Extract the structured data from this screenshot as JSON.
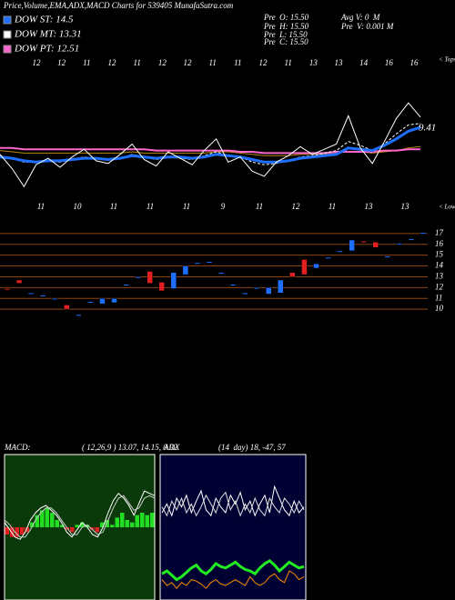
{
  "title": "Price,Volume,EMA,ADX,MACD Charts for 539405 MunafaSutra.com",
  "dow": [
    {
      "label": "DOW ST: 14.5",
      "color": "#1e6fff"
    },
    {
      "label": "DOW MT: 13.31",
      "color": "#ffffff"
    },
    {
      "label": "DOW PT: 12.51",
      "color": "#ff66cc"
    }
  ],
  "pre": [
    "Pre  O: 15.50",
    "Pre  H: 15.50",
    "Pre  L: 15.50",
    "Pre  C: 15.50"
  ],
  "vol": [
    "Avg V: 0  M",
    "Pre  V: 0.001 M"
  ],
  "chart_data": [
    {
      "type": "line",
      "ylim": [
        8,
        20
      ],
      "annotation": "9.41",
      "tops_label": "< Tops",
      "lows_label": "< Lows",
      "tops": [
        12,
        12,
        11,
        12,
        11,
        12,
        12,
        11,
        11,
        12,
        11,
        13,
        13,
        14,
        16,
        16
      ],
      "lows": [
        11,
        10,
        11,
        11,
        11,
        9,
        11,
        12,
        11,
        13,
        13
      ],
      "series": [
        {
          "color": "#b8860b",
          "width": 1,
          "values": [
            12.9,
            12.8,
            12.7,
            12.7,
            12.7,
            12.7,
            12.7,
            12.7,
            12.7,
            12.7,
            12.7,
            12.8,
            12.7,
            12.7,
            12.7,
            12.7,
            12.7,
            12.7,
            12.8,
            12.8,
            12.7,
            12.6,
            12.5,
            12.5,
            12.5,
            12.6,
            12.6,
            12.6,
            12.7,
            12.8,
            12.8,
            12.7,
            12.8,
            12.9,
            13.1,
            13.2
          ]
        },
        {
          "color": "#ff66cc",
          "width": 2,
          "values": [
            13.1,
            13.1,
            13.0,
            13.0,
            13.0,
            13.0,
            13.0,
            13.0,
            13.0,
            13.0,
            13.0,
            13.0,
            13.0,
            12.9,
            12.9,
            12.9,
            12.9,
            12.9,
            12.9,
            12.9,
            12.8,
            12.8,
            12.7,
            12.7,
            12.7,
            12.7,
            12.7,
            12.7,
            12.8,
            12.8,
            12.8,
            12.8,
            12.9,
            12.9,
            13.0,
            13.0
          ]
        },
        {
          "color": "#ffffff",
          "width": 1,
          "dash": true,
          "values": [
            12.5,
            12.3,
            12.0,
            12.0,
            12.1,
            12.0,
            12.2,
            12.4,
            12.3,
            12.2,
            12.3,
            12.6,
            12.4,
            12.2,
            12.4,
            12.3,
            12.2,
            12.5,
            12.8,
            12.5,
            12.4,
            12.0,
            11.8,
            11.9,
            12.1,
            12.4,
            12.5,
            12.7,
            12.9,
            13.6,
            13.3,
            12.9,
            13.4,
            14.2,
            14.9,
            15.0
          ]
        },
        {
          "color": "#1e6fff",
          "width": 3,
          "values": [
            12.4,
            12.3,
            12.1,
            12.0,
            12.1,
            12.1,
            12.2,
            12.3,
            12.3,
            12.2,
            12.3,
            12.5,
            12.4,
            12.3,
            12.4,
            12.4,
            12.3,
            12.4,
            12.6,
            12.5,
            12.4,
            12.2,
            12.0,
            12.0,
            12.1,
            12.3,
            12.4,
            12.5,
            12.6,
            13.1,
            13.0,
            12.9,
            13.3,
            13.8,
            14.4,
            14.7
          ]
        },
        {
          "color": "#ffffff",
          "width": 1,
          "values": [
            12.6,
            11.5,
            10.1,
            11.8,
            12.3,
            11.6,
            12.4,
            13.0,
            12.1,
            11.9,
            12.6,
            13.4,
            12.2,
            11.7,
            12.8,
            12.3,
            11.8,
            12.9,
            13.8,
            12.0,
            12.4,
            11.3,
            10.9,
            12.0,
            12.5,
            13.2,
            12.6,
            13.0,
            13.4,
            15.6,
            13.1,
            11.9,
            13.6,
            15.4,
            16.6,
            15.5
          ]
        }
      ]
    },
    {
      "type": "candlestick",
      "ylim": [
        9,
        18
      ],
      "yticks": [
        10,
        11,
        12,
        13,
        14,
        15,
        16,
        17
      ],
      "grid": true,
      "up_color": "#1e6fff",
      "down_color": "#e02020",
      "grid_color": "#8b4513",
      "open": [
        11.9,
        12.7,
        11.5,
        11.3,
        11.0,
        10.4,
        9.5,
        10.7,
        10.5,
        10.6,
        12.3,
        13.0,
        13.5,
        12.5,
        11.9,
        13.2,
        14.3,
        14.4,
        13.4,
        12.3,
        11.5,
        12.0,
        11.4,
        11.5,
        13.4,
        14.6,
        13.8,
        14.8,
        15.4,
        15.4,
        16.3,
        16.2,
        14.9,
        16.1,
        16.5,
        17.1
      ],
      "close": [
        11.8,
        12.4,
        11.5,
        11.3,
        11.0,
        10.0,
        9.5,
        10.7,
        11.0,
        11.0,
        12.3,
        13.0,
        12.4,
        11.7,
        13.4,
        14.0,
        14.3,
        14.4,
        13.4,
        12.3,
        11.5,
        12.0,
        12.0,
        12.7,
        13.0,
        13.2,
        14.2,
        14.8,
        15.4,
        16.4,
        16.2,
        15.7,
        14.9,
        16.1,
        16.5,
        17.1
      ]
    },
    {
      "type": "macd",
      "title": "MACD:",
      "subtitle": "( 12,26,9 ) 13.07, 14.15, 0.92",
      "ylim": [
        -3,
        3
      ],
      "background": "#0a3a0a",
      "up_color": "#22dd22",
      "down_color": "#e02020",
      "histogram": [
        -0.3,
        -0.4,
        -0.4,
        -0.3,
        -0.2,
        0.2,
        0.5,
        0.7,
        0.8,
        0.6,
        0.3,
        0.1,
        -0.1,
        -0.2,
        0.1,
        0.2,
        0.1,
        -0.1,
        -0.2,
        0.2,
        0.3,
        0.1,
        0.4,
        0.6,
        0.3,
        0.2,
        0.5,
        0.6,
        0.5,
        0.6
      ],
      "series": [
        {
          "color": "#ffffff",
          "values": [
            0.2,
            -0.1,
            -0.4,
            -0.5,
            -0.2,
            0.3,
            0.6,
            0.8,
            0.9,
            0.7,
            0.5,
            0.2,
            -0.2,
            -0.4,
            -0.1,
            0.2,
            0.0,
            -0.3,
            -0.4,
            0.0,
            0.6,
            1.1,
            1.4,
            1.2,
            0.9,
            0.5,
            1.0,
            1.5,
            1.4,
            1.3
          ]
        },
        {
          "color": "#cccccc",
          "values": [
            0.3,
            0.1,
            -0.2,
            -0.4,
            -0.4,
            -0.1,
            0.3,
            0.6,
            0.8,
            0.8,
            0.6,
            0.3,
            0.0,
            -0.3,
            -0.3,
            0.0,
            0.1,
            -0.1,
            -0.3,
            -0.2,
            0.3,
            0.8,
            1.2,
            1.3,
            1.0,
            0.7,
            0.8,
            1.2,
            1.3,
            1.2
          ]
        }
      ]
    },
    {
      "type": "adx",
      "title": "ADX",
      "subtitle": "(14  day) 18, -47, 57",
      "ylim": [
        0,
        100
      ],
      "background": "#000033",
      "series": [
        {
          "color": "#ffffff",
          "values": [
            60,
            66,
            58,
            70,
            64,
            72,
            60,
            68,
            75,
            62,
            58,
            70,
            64,
            60,
            72,
            66,
            74,
            62,
            68,
            58,
            66,
            72,
            60,
            78,
            70,
            62,
            58,
            68,
            60,
            64
          ]
        },
        {
          "color": "#dddddd",
          "values": [
            64,
            58,
            68,
            62,
            70,
            60,
            66,
            58,
            64,
            72,
            66,
            60,
            70,
            74,
            62,
            68,
            58,
            66,
            60,
            70,
            62,
            58,
            70,
            64,
            60,
            70,
            66,
            60,
            68,
            62
          ]
        },
        {
          "color": "#ff8c00",
          "values": [
            14,
            10,
            12,
            8,
            12,
            10,
            14,
            13,
            11,
            8,
            12,
            14,
            11,
            10,
            12,
            14,
            12,
            10,
            16,
            12,
            10,
            12,
            16,
            18,
            14,
            12,
            20,
            18,
            14,
            16
          ]
        },
        {
          "color": "#22ee22",
          "width": 3,
          "values": [
            18,
            20,
            17,
            14,
            16,
            19,
            22,
            24,
            20,
            18,
            21,
            25,
            23,
            22,
            24,
            26,
            23,
            21,
            20,
            18,
            22,
            25,
            27,
            24,
            20,
            23,
            26,
            24,
            22,
            23
          ]
        }
      ]
    }
  ]
}
